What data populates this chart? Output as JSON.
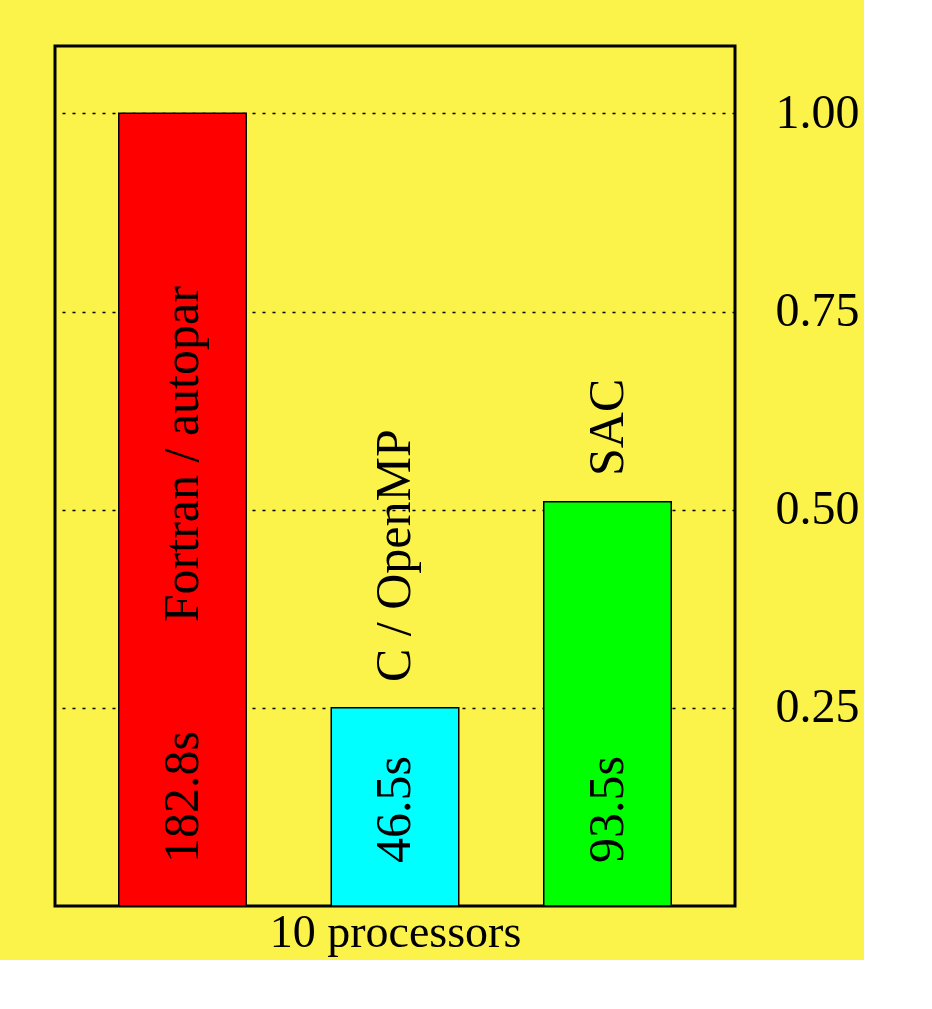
{
  "chart_data": {
    "type": "bar",
    "categories": [
      "Fortran / autopar",
      "C / OpenMP",
      "SAC"
    ],
    "values": [
      1.0,
      0.25,
      0.51
    ],
    "colors": [
      "#ff0000",
      "#00ffff",
      "#00ff00"
    ],
    "annotations": [
      "182.8s",
      "46.5s",
      "93.5s"
    ],
    "xlabel": "10 processors",
    "ylim": [
      0,
      1.085
    ],
    "yticks": [
      {
        "value": 0.25,
        "label": "0.25"
      },
      {
        "value": 0.5,
        "label": "0.50"
      },
      {
        "value": 0.75,
        "label": "0.75"
      },
      {
        "value": 1.0,
        "label": "1.00"
      }
    ],
    "grid": "y"
  }
}
